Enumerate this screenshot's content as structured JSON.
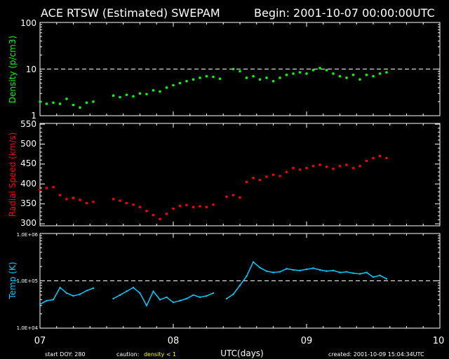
{
  "header": {
    "title": "ACE RTSW (Estimated) SWEPAM",
    "begin": "Begin: 2001-10-07 00:00:00UTC"
  },
  "footer": {
    "start_doy": "start DOY: 280",
    "caution_prefix": "caution:",
    "caution_text": "density < 1",
    "created": "created: 2001-10-09 15:04:34UTC"
  },
  "colors": {
    "background": "#000000",
    "axes": "#ffffff",
    "density": "#00ff00",
    "speed": "#ff0000",
    "temp": "#00ccff",
    "caution": "#ffff00"
  },
  "chart_data": [
    {
      "type": "scatter",
      "panel": "density",
      "ylabel": "Density (p/cm3)",
      "yscale": "log",
      "ylim": [
        1,
        100
      ],
      "yticks": [
        "1",
        "10",
        "100"
      ],
      "reference_line": 10,
      "x": [
        7.0,
        7.05,
        7.1,
        7.15,
        7.2,
        7.25,
        7.3,
        7.35,
        7.4,
        7.45,
        7.5,
        7.55,
        7.6,
        7.65,
        7.7,
        7.75,
        7.8,
        7.85,
        7.9,
        7.95,
        8.0,
        8.05,
        8.1,
        8.15,
        8.2,
        8.25,
        8.3,
        8.35,
        8.4,
        8.45,
        8.5,
        8.55,
        8.6,
        8.65,
        8.7,
        8.75,
        8.8,
        8.85,
        8.9,
        8.95,
        9.0,
        9.05,
        9.1,
        9.15,
        9.2,
        9.25,
        9.3,
        9.35,
        9.4,
        9.45,
        9.5,
        9.55,
        9.6
      ],
      "y": [
        2.0,
        1.8,
        1.9,
        1.8,
        2.3,
        1.7,
        1.5,
        1.9,
        2.0,
        null,
        null,
        2.7,
        2.5,
        2.8,
        2.6,
        3.0,
        2.9,
        3.5,
        3.3,
        4.0,
        4.5,
        5.0,
        5.5,
        6.0,
        6.5,
        7.0,
        6.8,
        6.2,
        null,
        10.0,
        9.0,
        6.5,
        7.0,
        6.0,
        6.5,
        5.5,
        6.5,
        7.5,
        8.0,
        8.5,
        8.0,
        9.5,
        10.5,
        9.5,
        8.0,
        7.0,
        6.5,
        7.5,
        6.0,
        7.5,
        7.0,
        8.0,
        8.5
      ],
      "color": "#00ff00"
    },
    {
      "type": "scatter",
      "panel": "speed",
      "ylabel": "Radial Speed (km/s)",
      "ylim": [
        295,
        552
      ],
      "yticks": [
        "300",
        "350",
        "400",
        "450",
        "500",
        "550"
      ],
      "x": [
        7.0,
        7.05,
        7.1,
        7.15,
        7.2,
        7.25,
        7.3,
        7.35,
        7.4,
        7.45,
        7.5,
        7.55,
        7.6,
        7.65,
        7.7,
        7.75,
        7.8,
        7.85,
        7.9,
        7.95,
        8.0,
        8.05,
        8.1,
        8.15,
        8.2,
        8.25,
        8.3,
        8.35,
        8.4,
        8.45,
        8.5,
        8.55,
        8.6,
        8.65,
        8.7,
        8.75,
        8.8,
        8.85,
        8.9,
        8.95,
        9.0,
        9.05,
        9.1,
        9.15,
        9.2,
        9.25,
        9.3,
        9.35,
        9.4,
        9.45,
        9.5,
        9.55,
        9.6
      ],
      "y": [
        385,
        390,
        392,
        372,
        362,
        365,
        360,
        352,
        355,
        null,
        null,
        362,
        358,
        352,
        348,
        342,
        332,
        322,
        312,
        325,
        338,
        345,
        347,
        342,
        344,
        342,
        348,
        null,
        368,
        372,
        366,
        405,
        415,
        410,
        418,
        423,
        420,
        430,
        440,
        436,
        440,
        445,
        448,
        443,
        438,
        445,
        448,
        440,
        445,
        458,
        465,
        470,
        465
      ],
      "color": "#ff0000"
    },
    {
      "type": "line",
      "panel": "temp",
      "ylabel": "Temp (K)",
      "yscale": "log",
      "ylim": [
        10000,
        1000000
      ],
      "yticks": [
        "1.0E+04",
        "1.0E+05",
        "1.0E+06"
      ],
      "reference_line": 100000,
      "x": [
        7.0,
        7.05,
        7.1,
        7.15,
        7.2,
        7.25,
        7.3,
        7.35,
        7.4,
        7.45,
        7.5,
        7.55,
        7.6,
        7.65,
        7.7,
        7.75,
        7.8,
        7.85,
        7.9,
        7.95,
        8.0,
        8.05,
        8.1,
        8.15,
        8.2,
        8.25,
        8.3,
        8.35,
        8.4,
        8.45,
        8.5,
        8.55,
        8.6,
        8.65,
        8.7,
        8.75,
        8.8,
        8.85,
        8.9,
        8.95,
        9.0,
        9.05,
        9.1,
        9.15,
        9.2,
        9.25,
        9.3,
        9.35,
        9.4,
        9.45,
        9.5,
        9.55,
        9.6
      ],
      "y": [
        32000,
        38000,
        40000,
        72000,
        55000,
        48000,
        52000,
        62000,
        70000,
        null,
        null,
        42000,
        50000,
        60000,
        72000,
        55000,
        30000,
        60000,
        40000,
        45000,
        35000,
        38000,
        42000,
        50000,
        45000,
        48000,
        55000,
        null,
        42000,
        52000,
        80000,
        125000,
        250000,
        190000,
        160000,
        150000,
        155000,
        180000,
        170000,
        165000,
        175000,
        185000,
        170000,
        160000,
        165000,
        150000,
        155000,
        145000,
        140000,
        150000,
        120000,
        130000,
        110000
      ],
      "color": "#00ccff"
    }
  ],
  "xaxis": {
    "label": "UTC(days)",
    "xlim": [
      7,
      10
    ],
    "ticks": [
      "07",
      "08",
      "09",
      "10"
    ]
  }
}
